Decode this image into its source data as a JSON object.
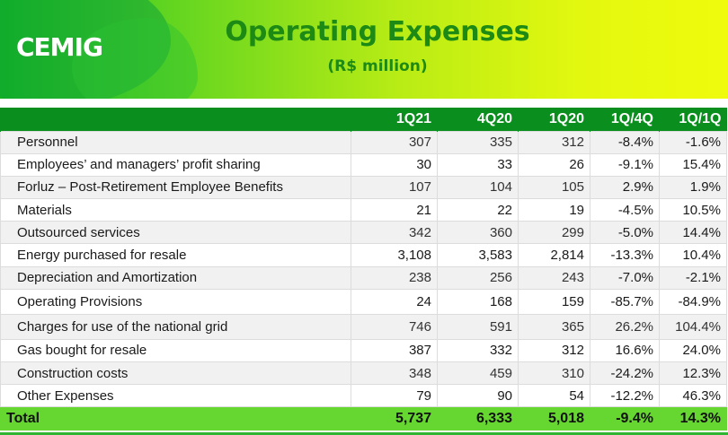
{
  "header": {
    "logo": "CEMIG",
    "title": "Operating Expenses",
    "subtitle": "(R$ million)"
  },
  "table": {
    "columns": [
      "",
      "1Q21",
      "4Q20",
      "1Q20",
      "1Q/4Q",
      "1Q/1Q"
    ],
    "rows": [
      {
        "label": "Personnel",
        "q121": "307",
        "q420": "335",
        "q120": "312",
        "qq4": "-8.4%",
        "qq1": "-1.6%"
      },
      {
        "label": "Employees’ and managers’ profit sharing",
        "q121": "30",
        "q420": "33",
        "q120": "26",
        "qq4": "-9.1%",
        "qq1": "15.4%"
      },
      {
        "label": "Forluz – Post-Retirement Employee Benefits",
        "q121": "107",
        "q420": "104",
        "q120": "105",
        "qq4": "2.9%",
        "qq1": "1.9%"
      },
      {
        "label": "Materials",
        "q121": "21",
        "q420": "22",
        "q120": "19",
        "qq4": "-4.5%",
        "qq1": "10.5%"
      },
      {
        "label": "Outsourced services",
        "q121": "342",
        "q420": "360",
        "q120": "299",
        "qq4": "-5.0%",
        "qq1": "14.4%"
      },
      {
        "label": "Energy purchased for resale",
        "q121": "3,108",
        "q420": "3,583",
        "q120": "2,814",
        "qq4": "-13.3%",
        "qq1": "10.4%"
      },
      {
        "label": "Depreciation and Amortization",
        "q121": "238",
        "q420": "256",
        "q120": "243",
        "qq4": "-7.0%",
        "qq1": "-2.1%"
      },
      {
        "label": "Operating Provisions",
        "q121": "24",
        "q420": "168",
        "q120": "159",
        "qq4": "-85.7%",
        "qq1": "-84.9%"
      },
      {
        "label": "Charges for use of the national grid",
        "q121": "746",
        "q420": "591",
        "q120": "365",
        "qq4": "26.2%",
        "qq1": "104.4%"
      },
      {
        "label": "Gas bought for resale",
        "q121": "387",
        "q420": "332",
        "q120": "312",
        "qq4": "16.6%",
        "qq1": "24.0%"
      },
      {
        "label": "Construction costs",
        "q121": "348",
        "q420": "459",
        "q120": "310",
        "qq4": "-24.2%",
        "qq1": "12.3%"
      },
      {
        "label": "Other Expenses",
        "q121": "79",
        "q420": "90",
        "q120": "54",
        "qq4": "-12.2%",
        "qq1": "46.3%"
      }
    ],
    "total": {
      "label": "Total",
      "q121": "5,737",
      "q420": "6,333",
      "q120": "5,018",
      "qq4": "-9.4%",
      "qq1": "14.3%"
    }
  }
}
